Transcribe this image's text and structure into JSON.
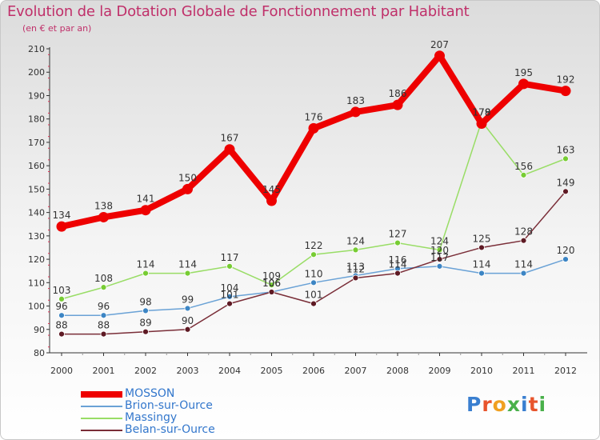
{
  "title": "Evolution de la Dotation Globale de Fonctionnement par Habitant",
  "subtitle": "(en € et par an)",
  "brand": {
    "logo_text": "Proxiti"
  },
  "chart_data": {
    "type": "line",
    "title": "Evolution de la Dotation Globale de Fonctionnement par Habitant",
    "subtitle": "(en € et par an)",
    "xlabel": "",
    "ylabel": "",
    "x": [
      "2000",
      "2001",
      "2002",
      "2003",
      "2004",
      "2005",
      "2006",
      "2007",
      "2008",
      "2009",
      "2010",
      "2011",
      "2012"
    ],
    "ylim": [
      80,
      210
    ],
    "yticks": [
      80,
      90,
      100,
      110,
      120,
      130,
      140,
      150,
      160,
      170,
      180,
      190,
      200,
      210
    ],
    "grid": false,
    "legend_position": "bottom-left",
    "series": [
      {
        "name": "MOSSON",
        "color": "#ee0000",
        "marker_color": "#ee0000",
        "emphasis": true,
        "values": [
          134,
          138,
          141,
          150,
          167,
          145,
          176,
          183,
          186,
          207,
          178,
          195,
          192
        ],
        "labels": [
          "134",
          "138",
          "141",
          "150",
          "167",
          "145",
          "176",
          "183",
          "186",
          "207",
          "178",
          "195",
          "192"
        ]
      },
      {
        "name": "Brion-sur-Ource",
        "color": "#6aa2d6",
        "marker_color": "#3c85c4",
        "emphasis": false,
        "values": [
          96,
          96,
          98,
          99,
          104,
          106,
          110,
          113,
          116,
          117,
          114,
          114,
          120
        ],
        "labels": [
          "96",
          "96",
          "98",
          "99",
          "104",
          "106",
          "110",
          "113",
          "116",
          "117",
          "114",
          "114",
          "120"
        ]
      },
      {
        "name": "Massingy",
        "color": "#99dd66",
        "marker_color": "#77cc33",
        "emphasis": false,
        "values": [
          103,
          108,
          114,
          114,
          117,
          109,
          122,
          124,
          127,
          124,
          179,
          156,
          163
        ],
        "labels": [
          "103",
          "108",
          "114",
          "114",
          "117",
          "109",
          "122",
          "124",
          "127",
          "124",
          "179",
          "156",
          "163"
        ]
      },
      {
        "name": "Belan-sur-Ource",
        "color": "#7a2e38",
        "marker_color": "#5e1a24",
        "emphasis": false,
        "values": [
          88,
          88,
          89,
          90,
          101,
          106,
          101,
          112,
          114,
          120,
          125,
          128,
          149
        ],
        "labels": [
          "88",
          "88",
          "89",
          "90",
          "101",
          "106",
          "101",
          "112",
          "114",
          "120",
          "125",
          "128",
          "149"
        ]
      }
    ]
  }
}
